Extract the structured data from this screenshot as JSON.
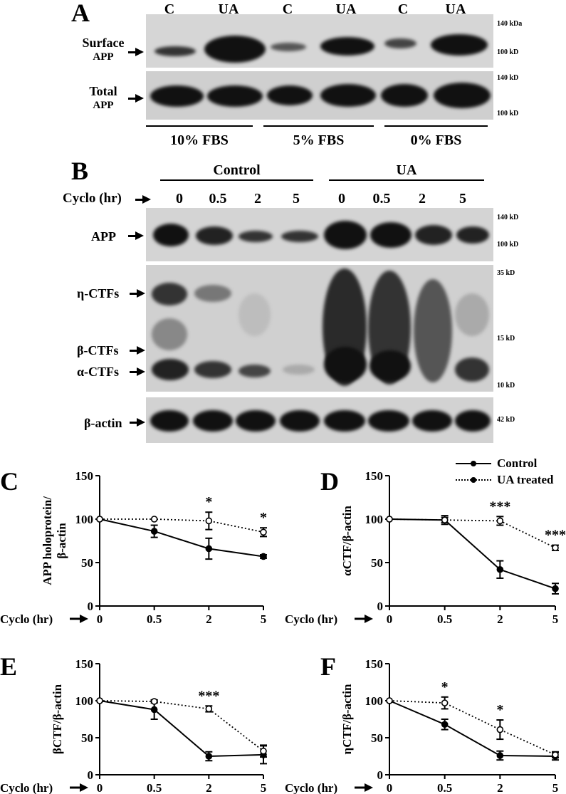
{
  "panelA": {
    "letter": "A",
    "lanes": [
      "C",
      "UA",
      "C",
      "UA",
      "C",
      "UA"
    ],
    "rows": [
      {
        "label_line1": "Surface",
        "label_line2": "APP",
        "mw_top": "140 kDa",
        "mw_bottom": "100 kD"
      },
      {
        "label_line1": "Total",
        "label_line2": "APP",
        "mw_top": "140 kD",
        "mw_bottom": "100 kD"
      }
    ],
    "conditions": [
      "10% FBS",
      "5% FBS",
      "0% FBS"
    ]
  },
  "panelB": {
    "letter": "B",
    "groups": [
      "Control",
      "UA"
    ],
    "cyclo_label": "Cyclo (hr)",
    "timepoints": [
      "0",
      "0.5",
      "2",
      "5",
      "0",
      "0.5",
      "2",
      "5"
    ],
    "rows": {
      "app": {
        "label": "APP",
        "mw_top": "140 kD",
        "mw_bottom": "100 kD"
      },
      "ctf": {
        "labels": [
          "η-CTFs",
          "β-CTFs",
          "α-CTFs"
        ],
        "mw_top": "35 kD",
        "mw_mid": "15 kD",
        "mw_bottom": "10 kD"
      },
      "actin": {
        "label": "β-actin",
        "mw": "42 kD"
      }
    }
  },
  "legend": {
    "control": "Control",
    "ua": "UA treated"
  },
  "chart_data": [
    {
      "panel": "C",
      "type": "line",
      "ylabel_line1": "APP holoprotein/",
      "ylabel_line2": "β-actin",
      "xlabel": "Cyclo (hr)",
      "x": [
        "0",
        "0.5",
        "2",
        "5"
      ],
      "ylim": [
        0,
        150
      ],
      "yticks": [
        "0",
        "50",
        "100",
        "150"
      ],
      "series": [
        {
          "name": "Control",
          "values": [
            100,
            86,
            66,
            57
          ],
          "errors": [
            0,
            7,
            12,
            2
          ]
        },
        {
          "name": "UA treated",
          "values": [
            100,
            100,
            98,
            85
          ],
          "errors": [
            0,
            0,
            10,
            5
          ]
        }
      ],
      "significance": [
        {
          "x_index": 2,
          "label": "*"
        },
        {
          "x_index": 3,
          "label": "*"
        }
      ]
    },
    {
      "panel": "D",
      "type": "line",
      "ylabel_line1": "αCTF/β-actin",
      "ylabel_line2": "",
      "xlabel": "Cyclo (hr)",
      "x": [
        "0",
        "0.5",
        "2",
        "5"
      ],
      "ylim": [
        0,
        150
      ],
      "yticks": [
        "0",
        "50",
        "100",
        "150"
      ],
      "series": [
        {
          "name": "Control",
          "values": [
            100,
            99,
            42,
            20
          ],
          "errors": [
            0,
            5,
            10,
            6
          ]
        },
        {
          "name": "UA treated",
          "values": [
            100,
            99,
            98,
            67
          ],
          "errors": [
            0,
            3,
            5,
            3
          ]
        }
      ],
      "significance": [
        {
          "x_index": 2,
          "label": "***"
        },
        {
          "x_index": 3,
          "label": "***"
        }
      ]
    },
    {
      "panel": "E",
      "type": "line",
      "ylabel_line1": "βCTF/β-actin",
      "ylabel_line2": "",
      "xlabel": "Cyclo (hr)",
      "x": [
        "0",
        "0.5",
        "2",
        "5"
      ],
      "ylim": [
        0,
        150
      ],
      "yticks": [
        "0",
        "50",
        "100",
        "150"
      ],
      "series": [
        {
          "name": "Control",
          "values": [
            100,
            88,
            25,
            27
          ],
          "errors": [
            0,
            13,
            6,
            12
          ]
        },
        {
          "name": "UA treated",
          "values": [
            100,
            99,
            89,
            32
          ],
          "errors": [
            0,
            2,
            4,
            8
          ]
        }
      ],
      "significance": [
        {
          "x_index": 2,
          "label": "***"
        }
      ]
    },
    {
      "panel": "F",
      "type": "line",
      "ylabel_line1": "ηCTF/β-actin",
      "ylabel_line2": "",
      "xlabel": "Cyclo (hr)",
      "x": [
        "0",
        "0.5",
        "2",
        "5"
      ],
      "ylim": [
        0,
        150
      ],
      "yticks": [
        "0",
        "50",
        "100",
        "150"
      ],
      "series": [
        {
          "name": "Control",
          "values": [
            100,
            68,
            26,
            25
          ],
          "errors": [
            0,
            7,
            6,
            5
          ]
        },
        {
          "name": "UA treated",
          "values": [
            100,
            97,
            61,
            27
          ],
          "errors": [
            0,
            8,
            13,
            4
          ]
        }
      ],
      "significance": [
        {
          "x_index": 1,
          "label": "*"
        },
        {
          "x_index": 2,
          "label": "*"
        }
      ]
    }
  ]
}
